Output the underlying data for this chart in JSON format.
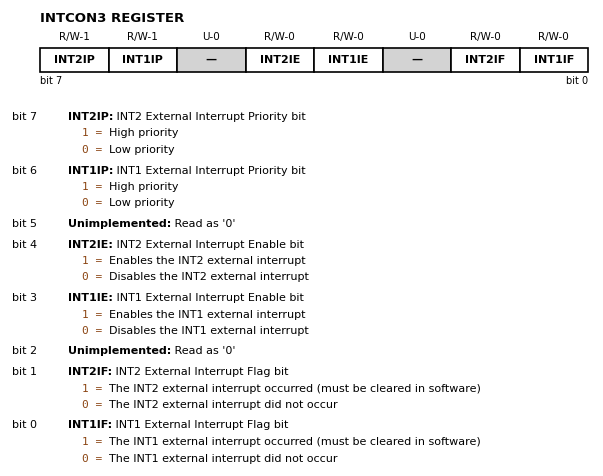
{
  "title": "INTCON3 REGISTER",
  "register_types": [
    "R/W-1",
    "R/W-1",
    "U-0",
    "R/W-0",
    "R/W-0",
    "U-0",
    "R/W-0",
    "R/W-0"
  ],
  "register_names": [
    "INT2IP",
    "INT1IP",
    "—",
    "INT2IE",
    "INT1IE",
    "—",
    "INT2IF",
    "INT1IF"
  ],
  "unimplemented_indices": [
    2,
    5
  ],
  "bit_descriptions": [
    {
      "bit": "bit 7",
      "bold_part": "INT2IP:",
      "rest": " INT2 External Interrupt Priority bit",
      "lines": [
        [
          "1 = ",
          "High priority"
        ],
        [
          "0 = ",
          "Low priority"
        ]
      ]
    },
    {
      "bit": "bit 6",
      "bold_part": "INT1IP:",
      "rest": " INT1 External Interrupt Priority bit",
      "lines": [
        [
          "1 = ",
          "High priority"
        ],
        [
          "0 = ",
          "Low priority"
        ]
      ]
    },
    {
      "bit": "bit 5",
      "bold_part": "Unimplemented:",
      "rest": " Read as '0'",
      "lines": []
    },
    {
      "bit": "bit 4",
      "bold_part": "INT2IE:",
      "rest": " INT2 External Interrupt Enable bit",
      "lines": [
        [
          "1 = ",
          "Enables the INT2 external interrupt"
        ],
        [
          "0 = ",
          "Disables the INT2 external interrupt"
        ]
      ]
    },
    {
      "bit": "bit 3",
      "bold_part": "INT1IE:",
      "rest": " INT1 External Interrupt Enable bit",
      "lines": [
        [
          "1 = ",
          "Enables the INT1 external interrupt"
        ],
        [
          "0 = ",
          "Disables the INT1 external interrupt"
        ]
      ]
    },
    {
      "bit": "bit 2",
      "bold_part": "Unimplemented:",
      "rest": " Read as '0'",
      "lines": []
    },
    {
      "bit": "bit 1",
      "bold_part": "INT2IF:",
      "rest": " INT2 External Interrupt Flag bit",
      "lines": [
        [
          "1 = ",
          "The INT2 external interrupt occurred (must be cleared in software)"
        ],
        [
          "0 = ",
          "The INT2 external interrupt did not occur"
        ]
      ]
    },
    {
      "bit": "bit 0",
      "bold_part": "INT1IF:",
      "rest": " INT1 External Interrupt Flag bit",
      "lines": [
        [
          "1 = ",
          "The INT1 external interrupt occurred (must be cleared in software)"
        ],
        [
          "0 = ",
          "The INT1 external interrupt did not occur"
        ]
      ]
    }
  ],
  "bg_color": "#ffffff",
  "cell_bg_normal": "#ffffff",
  "cell_bg_unimplemented": "#d3d3d3",
  "cell_border_color": "#000000",
  "text_color": "#000000",
  "mono_color": "#8B4513",
  "fig_width": 6.03,
  "fig_height": 4.76,
  "dpi": 100
}
